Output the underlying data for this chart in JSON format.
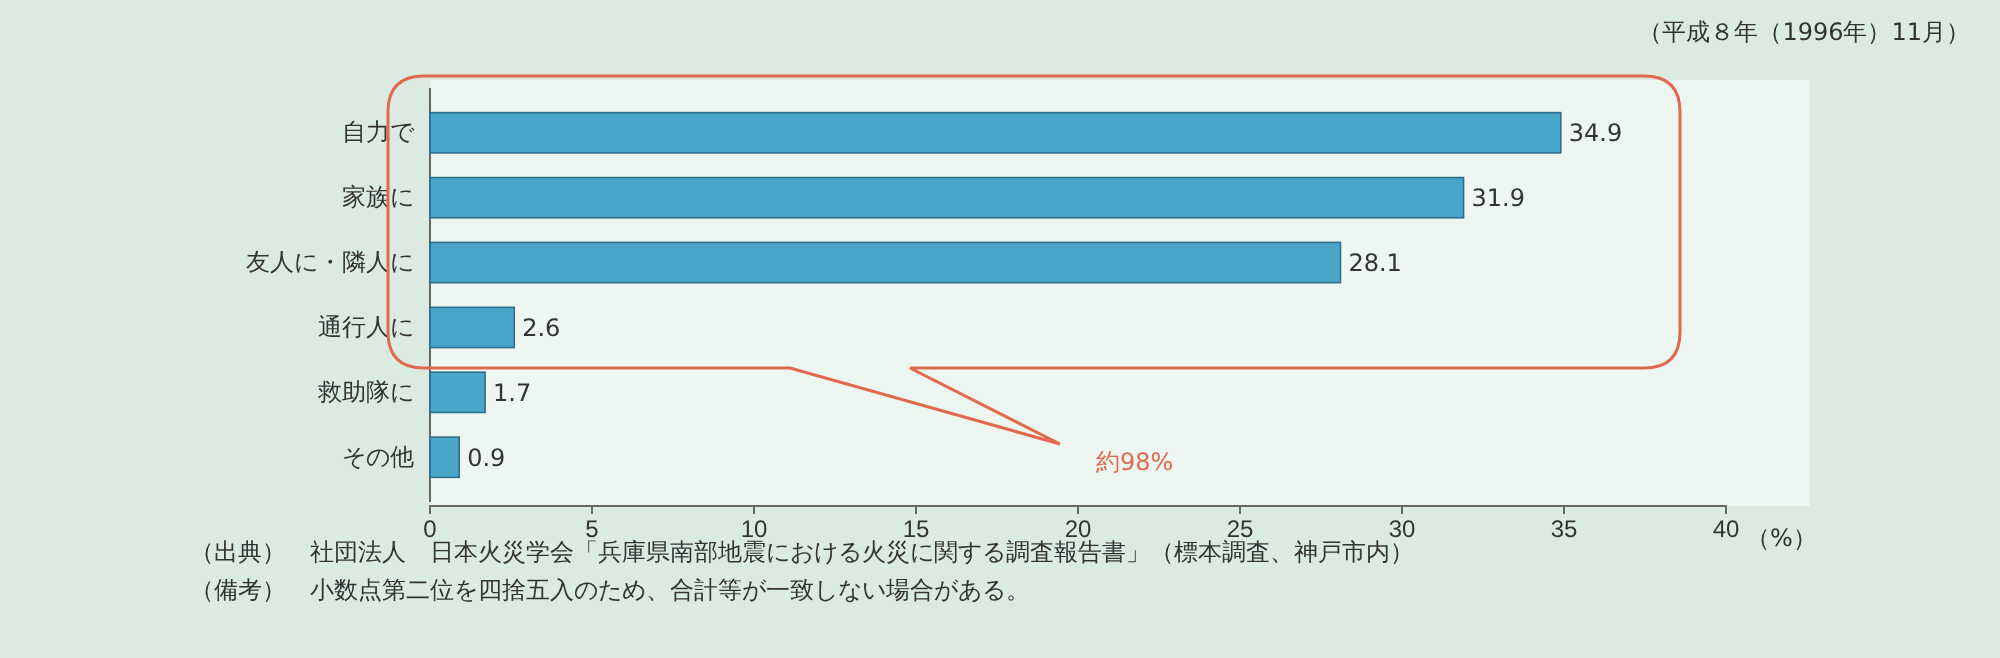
{
  "chart_data": {
    "type": "bar",
    "orientation": "horizontal",
    "subtitle": "（平成８年（1996年）11月）",
    "xlabel": "（%）",
    "categories": [
      "自力で",
      "家族に",
      "友人に・隣人に",
      "通行人に",
      "救助隊に",
      "その他"
    ],
    "values": [
      34.9,
      31.9,
      28.1,
      2.6,
      1.7,
      0.9
    ],
    "color": "#4aa6c8",
    "data_labels": true,
    "xlim": [
      0,
      40
    ],
    "xticks": [
      0,
      5,
      10,
      15,
      20,
      25,
      30,
      35,
      40
    ],
    "grid": false,
    "annotations": [
      "約98%",
      "（出典）　社団法人　日本火災学会「兵庫県南部地震における火災に関する調査報告書」（標本調査、神戸市内）",
      "（備考）　小数点第二位を四捨五入のため、合計等が一致しない場合がある。"
    ]
  }
}
